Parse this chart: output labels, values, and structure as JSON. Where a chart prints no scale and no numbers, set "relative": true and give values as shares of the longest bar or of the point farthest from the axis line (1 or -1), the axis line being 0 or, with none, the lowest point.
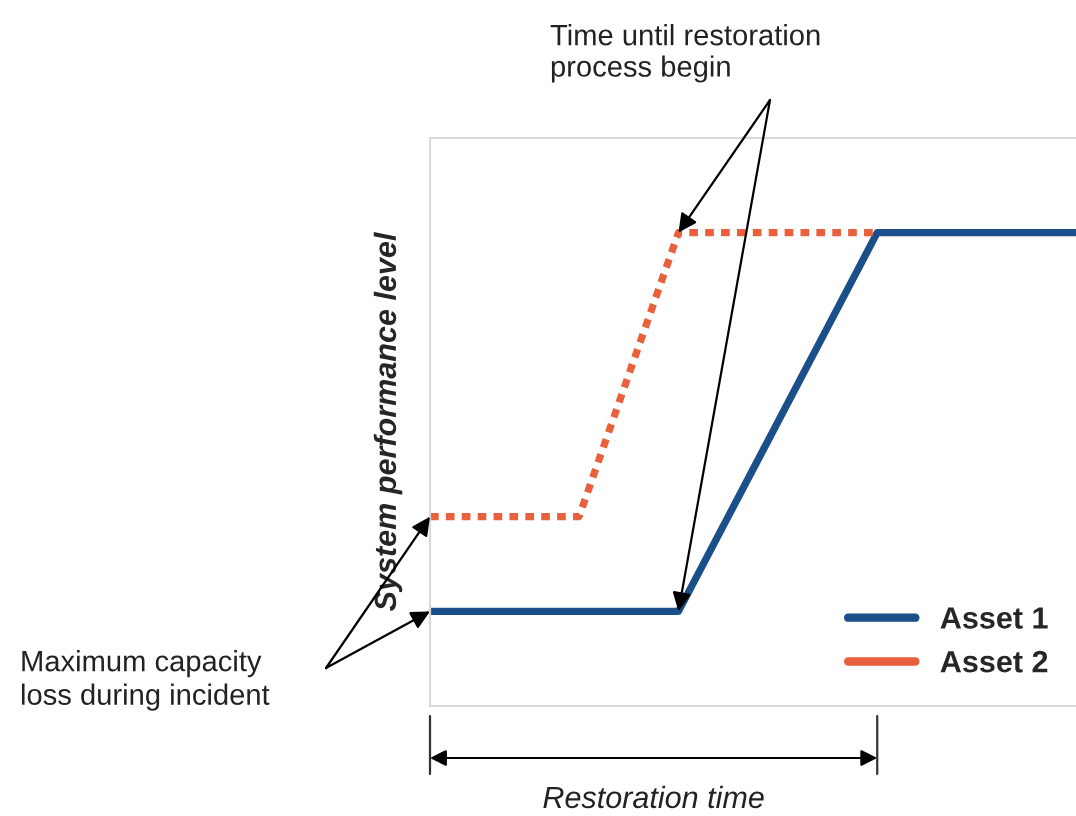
{
  "chart_data": {
    "type": "line",
    "relative": true,
    "ylabel": "System performance level",
    "categories": [
      null,
      null,
      null,
      null,
      null,
      null,
      null,
      null,
      null,
      null,
      null,
      null,
      null,
      null
    ],
    "series": [
      {
        "name": "Asset 1",
        "color": "#1b4f8a",
        "line_style": "solid",
        "values": [
          0.2,
          0.2,
          0.2,
          0.2,
          0.2,
          0.2,
          0.4,
          0.6,
          0.8,
          1,
          1,
          1,
          1,
          1
        ]
      },
      {
        "name": "Asset 2",
        "color": "#e8603c",
        "line_style": "dotted",
        "values": [
          0.4,
          0.4,
          0.4,
          0.4,
          0.7,
          1,
          1,
          1,
          1,
          1,
          null,
          null,
          null,
          null
        ]
      }
    ],
    "annotations": [
      "Time until restoration\nprocess begin",
      "Maximum capacity\nloss during incident",
      "Restoration time"
    ],
    "legend": "bottom right",
    "marker": "none"
  }
}
